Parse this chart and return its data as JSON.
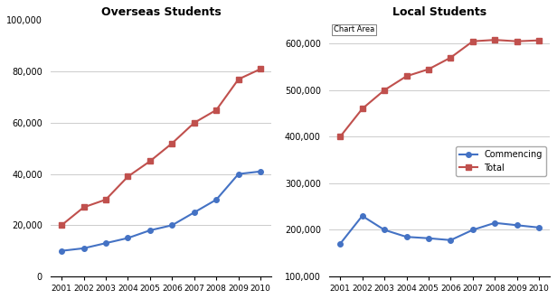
{
  "years": [
    2001,
    2002,
    2003,
    2004,
    2005,
    2006,
    2007,
    2008,
    2009,
    2010
  ],
  "overseas_commencing": [
    10000,
    11000,
    13000,
    15000,
    18000,
    20000,
    25000,
    30000,
    40000,
    41000
  ],
  "overseas_total": [
    20000,
    27000,
    30000,
    39000,
    45000,
    52000,
    60000,
    65000,
    77000,
    81000
  ],
  "local_commencing": [
    170000,
    230000,
    200000,
    185000,
    182000,
    178000,
    200000,
    215000,
    210000,
    205000
  ],
  "local_total": [
    400000,
    460000,
    500000,
    530000,
    545000,
    570000,
    605000,
    608000,
    605000,
    607000
  ],
  "overseas_title": "Overseas Students",
  "local_title": "Local Students",
  "chart_area_label": "Chart Area",
  "legend_commencing": "Commencing",
  "legend_total": "Total",
  "color_commencing": "#4472C4",
  "color_total": "#C0504D",
  "overseas_ylim": [
    0,
    100000
  ],
  "overseas_yticks": [
    0,
    20000,
    40000,
    60000,
    80000,
    100000
  ],
  "local_ylim": [
    100000,
    650000
  ],
  "local_yticks": [
    100000,
    200000,
    300000,
    400000,
    500000,
    600000
  ],
  "bg_color": "#FFFFFF",
  "plot_bg_color": "#FFFFFF"
}
